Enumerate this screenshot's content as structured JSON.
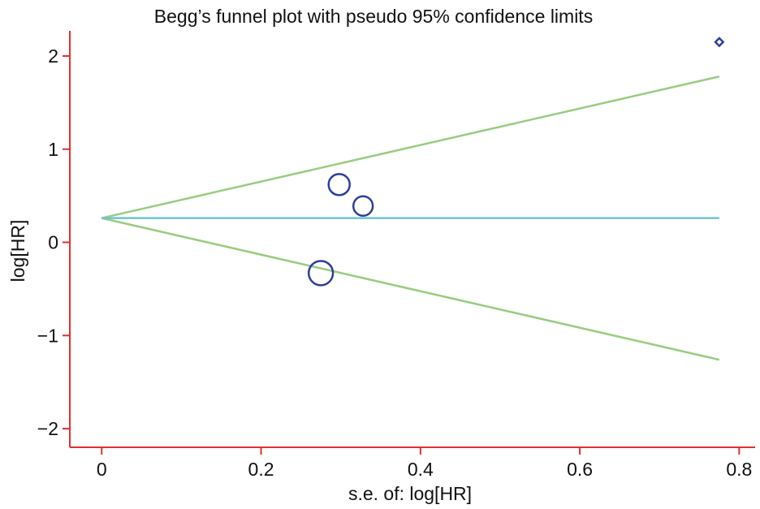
{
  "chart_data": {
    "type": "scatter",
    "title": "Begg’s funnel plot with pseudo 95% confidence limits",
    "xlabel": "s.e. of: log[HR]",
    "ylabel": "log[HR]",
    "xlim": [
      -0.04,
      0.82
    ],
    "ylim": [
      -2.2,
      2.27
    ],
    "x_ticks": [
      0,
      0.2,
      0.4,
      0.6,
      0.8
    ],
    "x_tick_labels": [
      "0",
      "0.2",
      "0.4",
      "0.6",
      "0.8"
    ],
    "y_ticks": [
      -2,
      -1,
      0,
      1,
      2
    ],
    "y_tick_labels": [
      "−2",
      "−1",
      "0",
      "1",
      "2"
    ],
    "grid": false,
    "series": [
      {
        "values": [
          {
            "x": 0.298,
            "y": 0.62,
            "marker": "circle",
            "weight": 1.0
          },
          {
            "x": 0.328,
            "y": 0.39,
            "marker": "circle",
            "weight": 0.92
          },
          {
            "x": 0.275,
            "y": -0.33,
            "marker": "circle",
            "weight": 1.15
          },
          {
            "x": 0.775,
            "y": 2.15,
            "marker": "diamond",
            "weight": 0.3
          }
        ]
      }
    ],
    "pooled_estimate": 0.26,
    "confidence_limits": {
      "upper": [
        {
          "x": 0.0,
          "y": 0.26
        },
        {
          "x": 0.775,
          "y": 1.78
        }
      ],
      "lower": [
        {
          "x": 0.0,
          "y": 0.26
        },
        {
          "x": 0.775,
          "y": -1.26
        }
      ]
    },
    "colors": {
      "axis": "#e03030",
      "points": "#2d3f9a",
      "pooled_line": "#6fc2d6",
      "confidence_limits": "#99cc80",
      "text": "#111111"
    }
  }
}
